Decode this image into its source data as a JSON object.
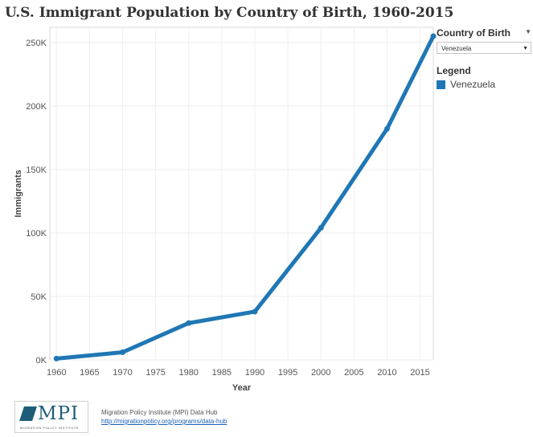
{
  "title": "U.S. Immigrant Population by Country of Birth, 1960-2015",
  "filter": {
    "label": "Country of Birth",
    "selected": "Venezuela"
  },
  "legend": {
    "title": "Legend",
    "items": [
      {
        "label": "Venezuela",
        "color": "#1f77b4"
      }
    ]
  },
  "footer": {
    "logo_text": "MPI",
    "logo_subtitle": "MIGRATION POLICY INSTITUTE",
    "source": "Migration Policy Institute (MPI) Data Hub",
    "link": "http://migrationpolicy.org/programs/data-hub"
  },
  "chart_data": {
    "type": "line",
    "xlabel": "Year",
    "ylabel": "Immigrants",
    "xlim": [
      1959,
      2017
    ],
    "ylim": [
      0,
      262000
    ],
    "x_ticks": [
      1960,
      1965,
      1970,
      1975,
      1980,
      1985,
      1990,
      1995,
      2000,
      2005,
      2010,
      2015
    ],
    "y_ticks": [
      0,
      50000,
      100000,
      150000,
      200000,
      250000
    ],
    "y_tick_labels": [
      "0K",
      "50K",
      "100K",
      "150K",
      "200K",
      "250K"
    ],
    "grid": true,
    "series": [
      {
        "name": "Venezuela",
        "color": "#1f77b4",
        "x": [
          1960,
          1970,
          1980,
          1990,
          2000,
          2010,
          2017
        ],
        "y": [
          1000,
          6000,
          29000,
          38000,
          104000,
          182000,
          255000
        ]
      }
    ]
  }
}
